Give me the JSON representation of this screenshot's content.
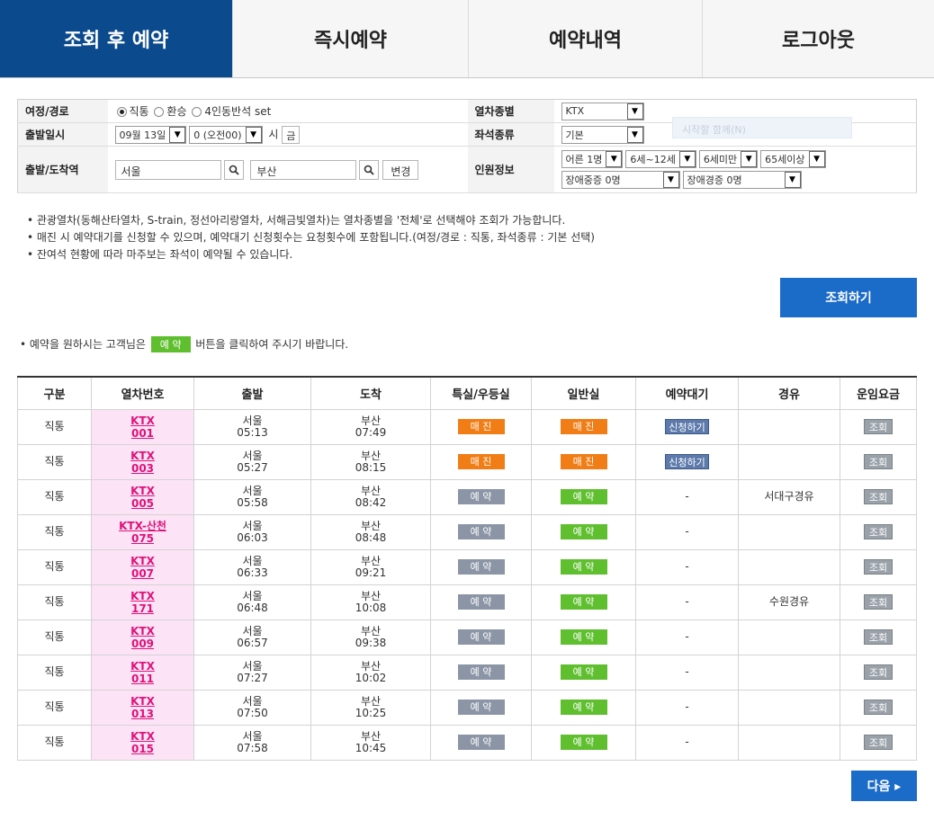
{
  "nav": {
    "tabs": [
      {
        "label": "조회 후 예약"
      },
      {
        "label": "즉시예약"
      },
      {
        "label": "예약내역"
      },
      {
        "label": "로그아웃"
      }
    ]
  },
  "form": {
    "route_label": "여정/경로",
    "route_options": [
      "직통",
      "환승",
      "4인동반석 set"
    ],
    "train_type_label": "열차종별",
    "train_type_value": "KTX",
    "date_label": "출발일시",
    "date_value": "09월 13일",
    "hour_value": "0 (오전00)",
    "hour_suffix": "시",
    "weekday": "금",
    "seat_type_label": "좌석종류",
    "seat_type_value": "기본",
    "station_label": "출발/도착역",
    "departure_station": "서울",
    "arrival_station": "부산",
    "change_button": "변경",
    "passenger_label": "인원정보",
    "passengers": [
      "어른 1명",
      "6세~12세",
      "6세미만",
      "65세이상",
      "장애중증 0명",
      "장애경증 0명"
    ],
    "ghost_text": "시작할 함께(N)"
  },
  "notes": [
    "• 관광열차(동해산타열차, S-train, 정선아리랑열차, 서해금빛열차)는 열차종별을 '전체'로 선택해야 조회가 가능합니다.",
    "• 매진 시 예약대기를 신청할 수 있으며, 예약대기 신청횟수는 요청횟수에 포함됩니다.(여정/경로 : 직통, 좌석종류 : 기본 선택)",
    "• 잔여석 현황에 따라 마주보는 좌석이 예약될 수 있습니다."
  ],
  "search_button": "조회하기",
  "guide": {
    "before": "• 예약을 원하시는 고객님은",
    "button": "예 약",
    "after": "버튼을 클릭하여 주시기 바랍니다."
  },
  "table": {
    "headers": [
      "구분",
      "열차번호",
      "출발",
      "도착",
      "특실/우등실",
      "일반실",
      "예약대기",
      "경유",
      "운임요금"
    ],
    "rows": [
      {
        "kind": "직통",
        "train": "KTX",
        "no": "001",
        "dep": "서울",
        "dep_time": "05:13",
        "arr": "부산",
        "arr_time": "07:49",
        "first": "매 진",
        "general": "매 진",
        "wait": "신청하기",
        "via": "",
        "fare": "조회"
      },
      {
        "kind": "직통",
        "train": "KTX",
        "no": "003",
        "dep": "서울",
        "dep_time": "05:27",
        "arr": "부산",
        "arr_time": "08:15",
        "first": "매 진",
        "general": "매 진",
        "wait": "신청하기",
        "via": "",
        "fare": "조회"
      },
      {
        "kind": "직통",
        "train": "KTX",
        "no": "005",
        "dep": "서울",
        "dep_time": "05:58",
        "arr": "부산",
        "arr_time": "08:42",
        "first": "예 약",
        "general": "예 약",
        "wait": "-",
        "via": "서대구경유",
        "fare": "조회"
      },
      {
        "kind": "직통",
        "train": "KTX-산천",
        "no": "075",
        "dep": "서울",
        "dep_time": "06:03",
        "arr": "부산",
        "arr_time": "08:48",
        "first": "예 약",
        "general": "예 약",
        "wait": "-",
        "via": "",
        "fare": "조회"
      },
      {
        "kind": "직통",
        "train": "KTX",
        "no": "007",
        "dep": "서울",
        "dep_time": "06:33",
        "arr": "부산",
        "arr_time": "09:21",
        "first": "예 약",
        "general": "예 약",
        "wait": "-",
        "via": "",
        "fare": "조회"
      },
      {
        "kind": "직통",
        "train": "KTX",
        "no": "171",
        "dep": "서울",
        "dep_time": "06:48",
        "arr": "부산",
        "arr_time": "10:08",
        "first": "예 약",
        "general": "예 약",
        "wait": "-",
        "via": "수원경유",
        "fare": "조회"
      },
      {
        "kind": "직통",
        "train": "KTX",
        "no": "009",
        "dep": "서울",
        "dep_time": "06:57",
        "arr": "부산",
        "arr_time": "09:38",
        "first": "예 약",
        "general": "예 약",
        "wait": "-",
        "via": "",
        "fare": "조회"
      },
      {
        "kind": "직통",
        "train": "KTX",
        "no": "011",
        "dep": "서울",
        "dep_time": "07:27",
        "arr": "부산",
        "arr_time": "10:02",
        "first": "예 약",
        "general": "예 약",
        "wait": "-",
        "via": "",
        "fare": "조회"
      },
      {
        "kind": "직통",
        "train": "KTX",
        "no": "013",
        "dep": "서울",
        "dep_time": "07:50",
        "arr": "부산",
        "arr_time": "10:25",
        "first": "예 약",
        "general": "예 약",
        "wait": "-",
        "via": "",
        "fare": "조회"
      },
      {
        "kind": "직통",
        "train": "KTX",
        "no": "015",
        "dep": "서울",
        "dep_time": "07:58",
        "arr": "부산",
        "arr_time": "10:45",
        "first": "예 약",
        "general": "예 약",
        "wait": "-",
        "via": "",
        "fare": "조회"
      }
    ]
  },
  "next_button": "다음 ▸",
  "colors": {
    "nav_active": "#0c4a8e",
    "button_blue": "#1b6bc9",
    "sold_out": "#f07d16",
    "reserve_general": "#5fbf2f",
    "reserve_first": "#8b95a5",
    "train_link": "#e0117a"
  }
}
